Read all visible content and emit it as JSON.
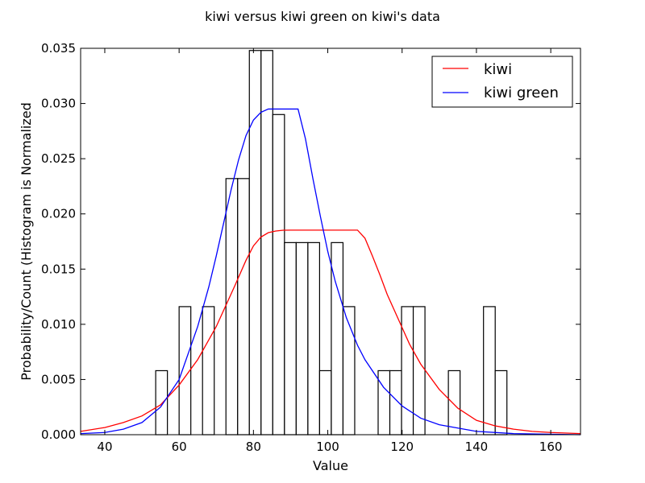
{
  "chart_data": {
    "type": "histogram",
    "title": "kiwi versus kiwi green on kiwi's data",
    "xlabel": "Value",
    "ylabel": "Probability/Count (Histogram is Normalized",
    "xlim": [
      33.5,
      168
    ],
    "ylim": [
      0,
      0.035
    ],
    "xticks": [
      "40",
      "60",
      "80",
      "100",
      "120",
      "140",
      "160"
    ],
    "xtick_values": [
      40,
      60,
      80,
      100,
      120,
      140,
      160
    ],
    "yticks": [
      "0.000",
      "0.005",
      "0.010",
      "0.015",
      "0.020",
      "0.025",
      "0.030",
      "0.035"
    ],
    "ytick_values": [
      0,
      0.005,
      0.01,
      0.015,
      0.02,
      0.025,
      0.03,
      0.035
    ],
    "legend_position": "top-right",
    "grid": false,
    "histogram": {
      "bin_edges": [
        53.7,
        56.85,
        60.0,
        63.15,
        66.3,
        69.45,
        72.6,
        75.75,
        78.9,
        82.05,
        85.2,
        88.35,
        91.5,
        94.65,
        97.8,
        100.95,
        104.1,
        107.25,
        110.4,
        113.55,
        116.7,
        119.85,
        123.0,
        126.15,
        129.3,
        132.45,
        135.6,
        138.75,
        141.9,
        145.05,
        148.2
      ],
      "densities": [
        0.0058,
        0,
        0.0116,
        0,
        0.0116,
        0,
        0.0232,
        0.0232,
        0.0348,
        0.0348,
        0.029,
        0.0174,
        0.0174,
        0.0174,
        0.0058,
        0.0174,
        0.0116,
        0,
        0,
        0.0058,
        0.0058,
        0.0116,
        0.0116,
        0,
        0,
        0.0058,
        0,
        0,
        0.0116,
        0.0058
      ],
      "edge_color": "#000000",
      "fill_color": "#ffffff"
    },
    "series": [
      {
        "name": "kiwi",
        "color": "#ff0000",
        "x": [
          33.5,
          40,
          45,
          50,
          55,
          60,
          65,
          70,
          75,
          78,
          80,
          82,
          84,
          86,
          88,
          90,
          95,
          100,
          105,
          108,
          110,
          112,
          114,
          116,
          118,
          120,
          122,
          125,
          130,
          135,
          140,
          145,
          150,
          155,
          160,
          168
        ],
        "y": [
          0.0003,
          0.00065,
          0.0011,
          0.0017,
          0.0027,
          0.0045,
          0.0068,
          0.0098,
          0.0135,
          0.0158,
          0.0171,
          0.0179,
          0.0183,
          0.01845,
          0.01852,
          0.01853,
          0.01853,
          0.01853,
          0.01853,
          0.01853,
          0.0178,
          0.0162,
          0.0145,
          0.0127,
          0.0112,
          0.0097,
          0.0082,
          0.0064,
          0.0041,
          0.0024,
          0.0013,
          0.0008,
          0.0005,
          0.0003,
          0.0002,
          0.0001
        ]
      },
      {
        "name": "kiwi green",
        "color": "#0000ff",
        "x": [
          33.5,
          40,
          45,
          50,
          55,
          60,
          65,
          68,
          70,
          72,
          74,
          76,
          78,
          80,
          82,
          84,
          86,
          90,
          92,
          94,
          96,
          98,
          100,
          102,
          105,
          108,
          110,
          115,
          120,
          125,
          130,
          140,
          150,
          168
        ],
        "y": [
          0.0001,
          0.0002,
          0.0005,
          0.0011,
          0.0025,
          0.005,
          0.0098,
          0.0134,
          0.0162,
          0.0192,
          0.0222,
          0.0249,
          0.0271,
          0.0285,
          0.0292,
          0.0295,
          0.0295,
          0.0295,
          0.0295,
          0.0268,
          0.0232,
          0.0198,
          0.0166,
          0.0139,
          0.0106,
          0.0081,
          0.0068,
          0.0043,
          0.0026,
          0.0015,
          0.0009,
          0.0003,
          0.0001,
          0
        ]
      }
    ]
  }
}
